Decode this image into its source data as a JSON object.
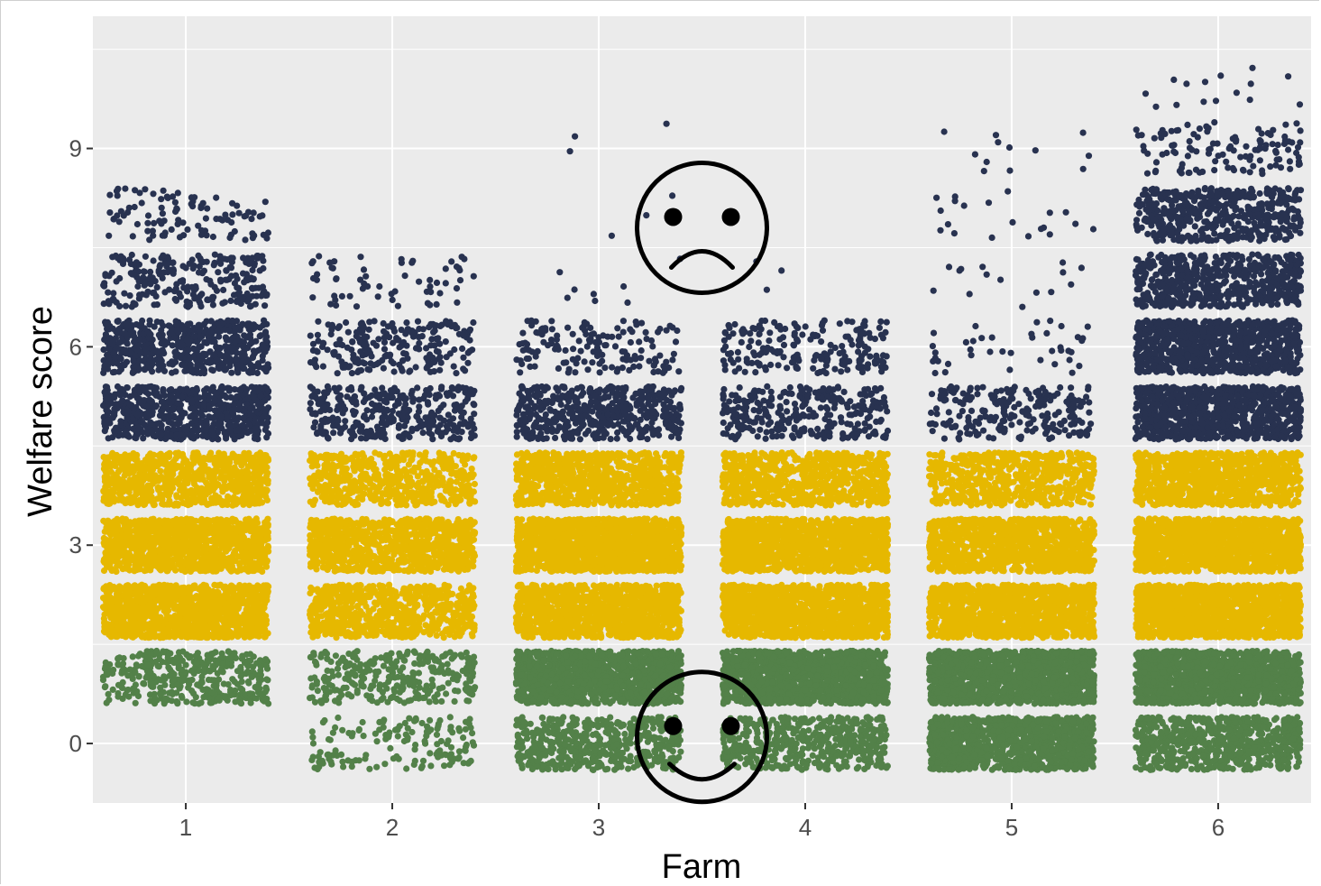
{
  "chart_data": {
    "type": "scatter",
    "title": "",
    "xlabel": "Farm",
    "ylabel": "Welfare score",
    "x_categories": [
      "1",
      "2",
      "3",
      "4",
      "5",
      "6"
    ],
    "x_range": [
      0.55,
      6.45
    ],
    "y_range": [
      -0.9,
      11.0
    ],
    "y_ticks": [
      0,
      3,
      6,
      9
    ],
    "y_tick_labels": [
      "0",
      "3",
      "6",
      "9"
    ],
    "grid": true,
    "legend": "none",
    "jitter_width": 0.4,
    "jitter_height": 0.4,
    "colors": {
      "good": "#538149",
      "moderate": "#E6B800",
      "poor": "#283250",
      "panel": "#EBEBEB",
      "gridline": "#FFFFFF"
    },
    "bands": [
      {
        "score": 0,
        "category": "good"
      },
      {
        "score": 1,
        "category": "good"
      },
      {
        "score": 2,
        "category": "moderate"
      },
      {
        "score": 3,
        "category": "moderate"
      },
      {
        "score": 4,
        "category": "moderate"
      },
      {
        "score": 5,
        "category": "poor"
      },
      {
        "score": 6,
        "category": "poor"
      },
      {
        "score": 7,
        "category": "poor"
      },
      {
        "score": 8,
        "category": "poor"
      },
      {
        "score": 9,
        "category": "poor"
      },
      {
        "score": 10,
        "category": "poor"
      }
    ],
    "approx_point_counts": {
      "columns": [
        "farm",
        "s0",
        "s1",
        "s2",
        "s3",
        "s4",
        "s5",
        "s6",
        "s7",
        "s8",
        "s9",
        "s10"
      ],
      "rows": [
        [
          1,
          0,
          400,
          1200,
          1200,
          800,
          700,
          600,
          250,
          100,
          0,
          0
        ],
        [
          2,
          150,
          300,
          700,
          900,
          550,
          350,
          220,
          60,
          0,
          0,
          0
        ],
        [
          3,
          500,
          1400,
          1200,
          1500,
          900,
          500,
          150,
          8,
          3,
          3,
          0
        ],
        [
          4,
          500,
          1400,
          1300,
          1300,
          800,
          300,
          200,
          3,
          0,
          0,
          0
        ],
        [
          5,
          1200,
          1500,
          1300,
          1100,
          600,
          220,
          40,
          15,
          20,
          12,
          0
        ],
        [
          6,
          700,
          1400,
          1500,
          1500,
          1000,
          900,
          900,
          600,
          500,
          120,
          15
        ]
      ]
    },
    "annotations": [
      {
        "type": "sad-face",
        "near_x": 3.5,
        "near_y": 7.8
      },
      {
        "type": "smiley-face",
        "near_x": 3.5,
        "near_y": 0.1
      }
    ]
  }
}
